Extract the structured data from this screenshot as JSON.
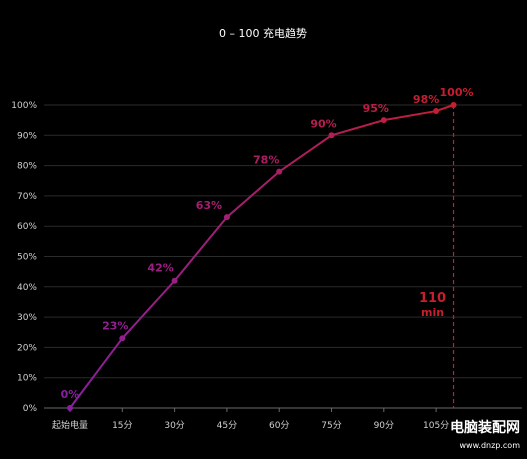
{
  "chart_data": {
    "type": "line",
    "title": "0 – 100 充电趋势",
    "categories": [
      "起始电量",
      "15分",
      "30分",
      "45分",
      "60分",
      "75分",
      "90分",
      "105分",
      "110"
    ],
    "x": [
      0,
      15,
      30,
      45,
      60,
      75,
      90,
      105,
      110
    ],
    "values": [
      0,
      23,
      42,
      63,
      78,
      90,
      95,
      98,
      100
    ],
    "data_labels": [
      "0%",
      "23%",
      "42%",
      "63%",
      "78%",
      "90%",
      "95%",
      "98%",
      "100%"
    ],
    "yticks": [
      "0%",
      "10%",
      "20%",
      "30%",
      "40%",
      "50%",
      "60%",
      "70%",
      "80%",
      "90%",
      "100%"
    ],
    "xticks": [
      "起始电量",
      "15分",
      "30分",
      "45分",
      "60分",
      "75分",
      "90分",
      "105分"
    ],
    "ylim": [
      0,
      100
    ],
    "xlim": [
      0,
      120
    ],
    "grid": true,
    "gradient_colors": [
      "#8a1fa0",
      "#c81e2e"
    ],
    "annotation": {
      "value": "110",
      "unit": "min",
      "x": 110,
      "color": "#c81e2e"
    }
  },
  "watermark": {
    "text": "电脑装配网",
    "url": "www.dnzp.com"
  }
}
